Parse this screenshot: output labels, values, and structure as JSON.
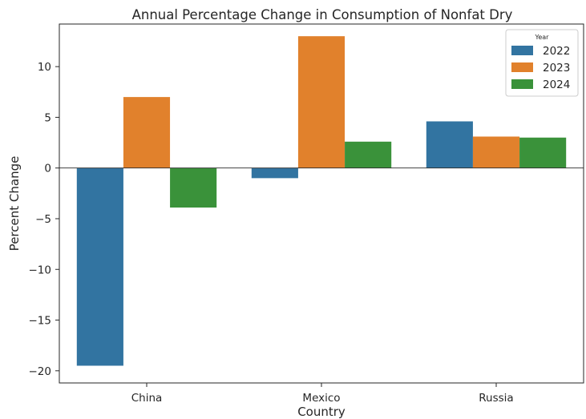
{
  "chart_data": {
    "type": "bar",
    "title": "Annual Percentage Change in Consumption of  Nonfat Dry",
    "xlabel": "Country",
    "ylabel": "Percent Change",
    "categories": [
      "China",
      "Mexico",
      "Russia"
    ],
    "series": [
      {
        "name": "2022",
        "values": [
          -19.5,
          -1.0,
          4.6
        ],
        "color": "#3274a1"
      },
      {
        "name": "2023",
        "values": [
          7.0,
          13.0,
          3.1
        ],
        "color": "#e1812c"
      },
      {
        "name": "2024",
        "values": [
          -3.9,
          2.6,
          3.0
        ],
        "color": "#3a923a"
      }
    ],
    "ylim": [
      -21.2,
      14.2
    ],
    "yticks": [
      -20,
      -15,
      -10,
      -5,
      0,
      5,
      10
    ],
    "grid": false,
    "legend": {
      "title": "Year",
      "placement": "top-right"
    }
  }
}
